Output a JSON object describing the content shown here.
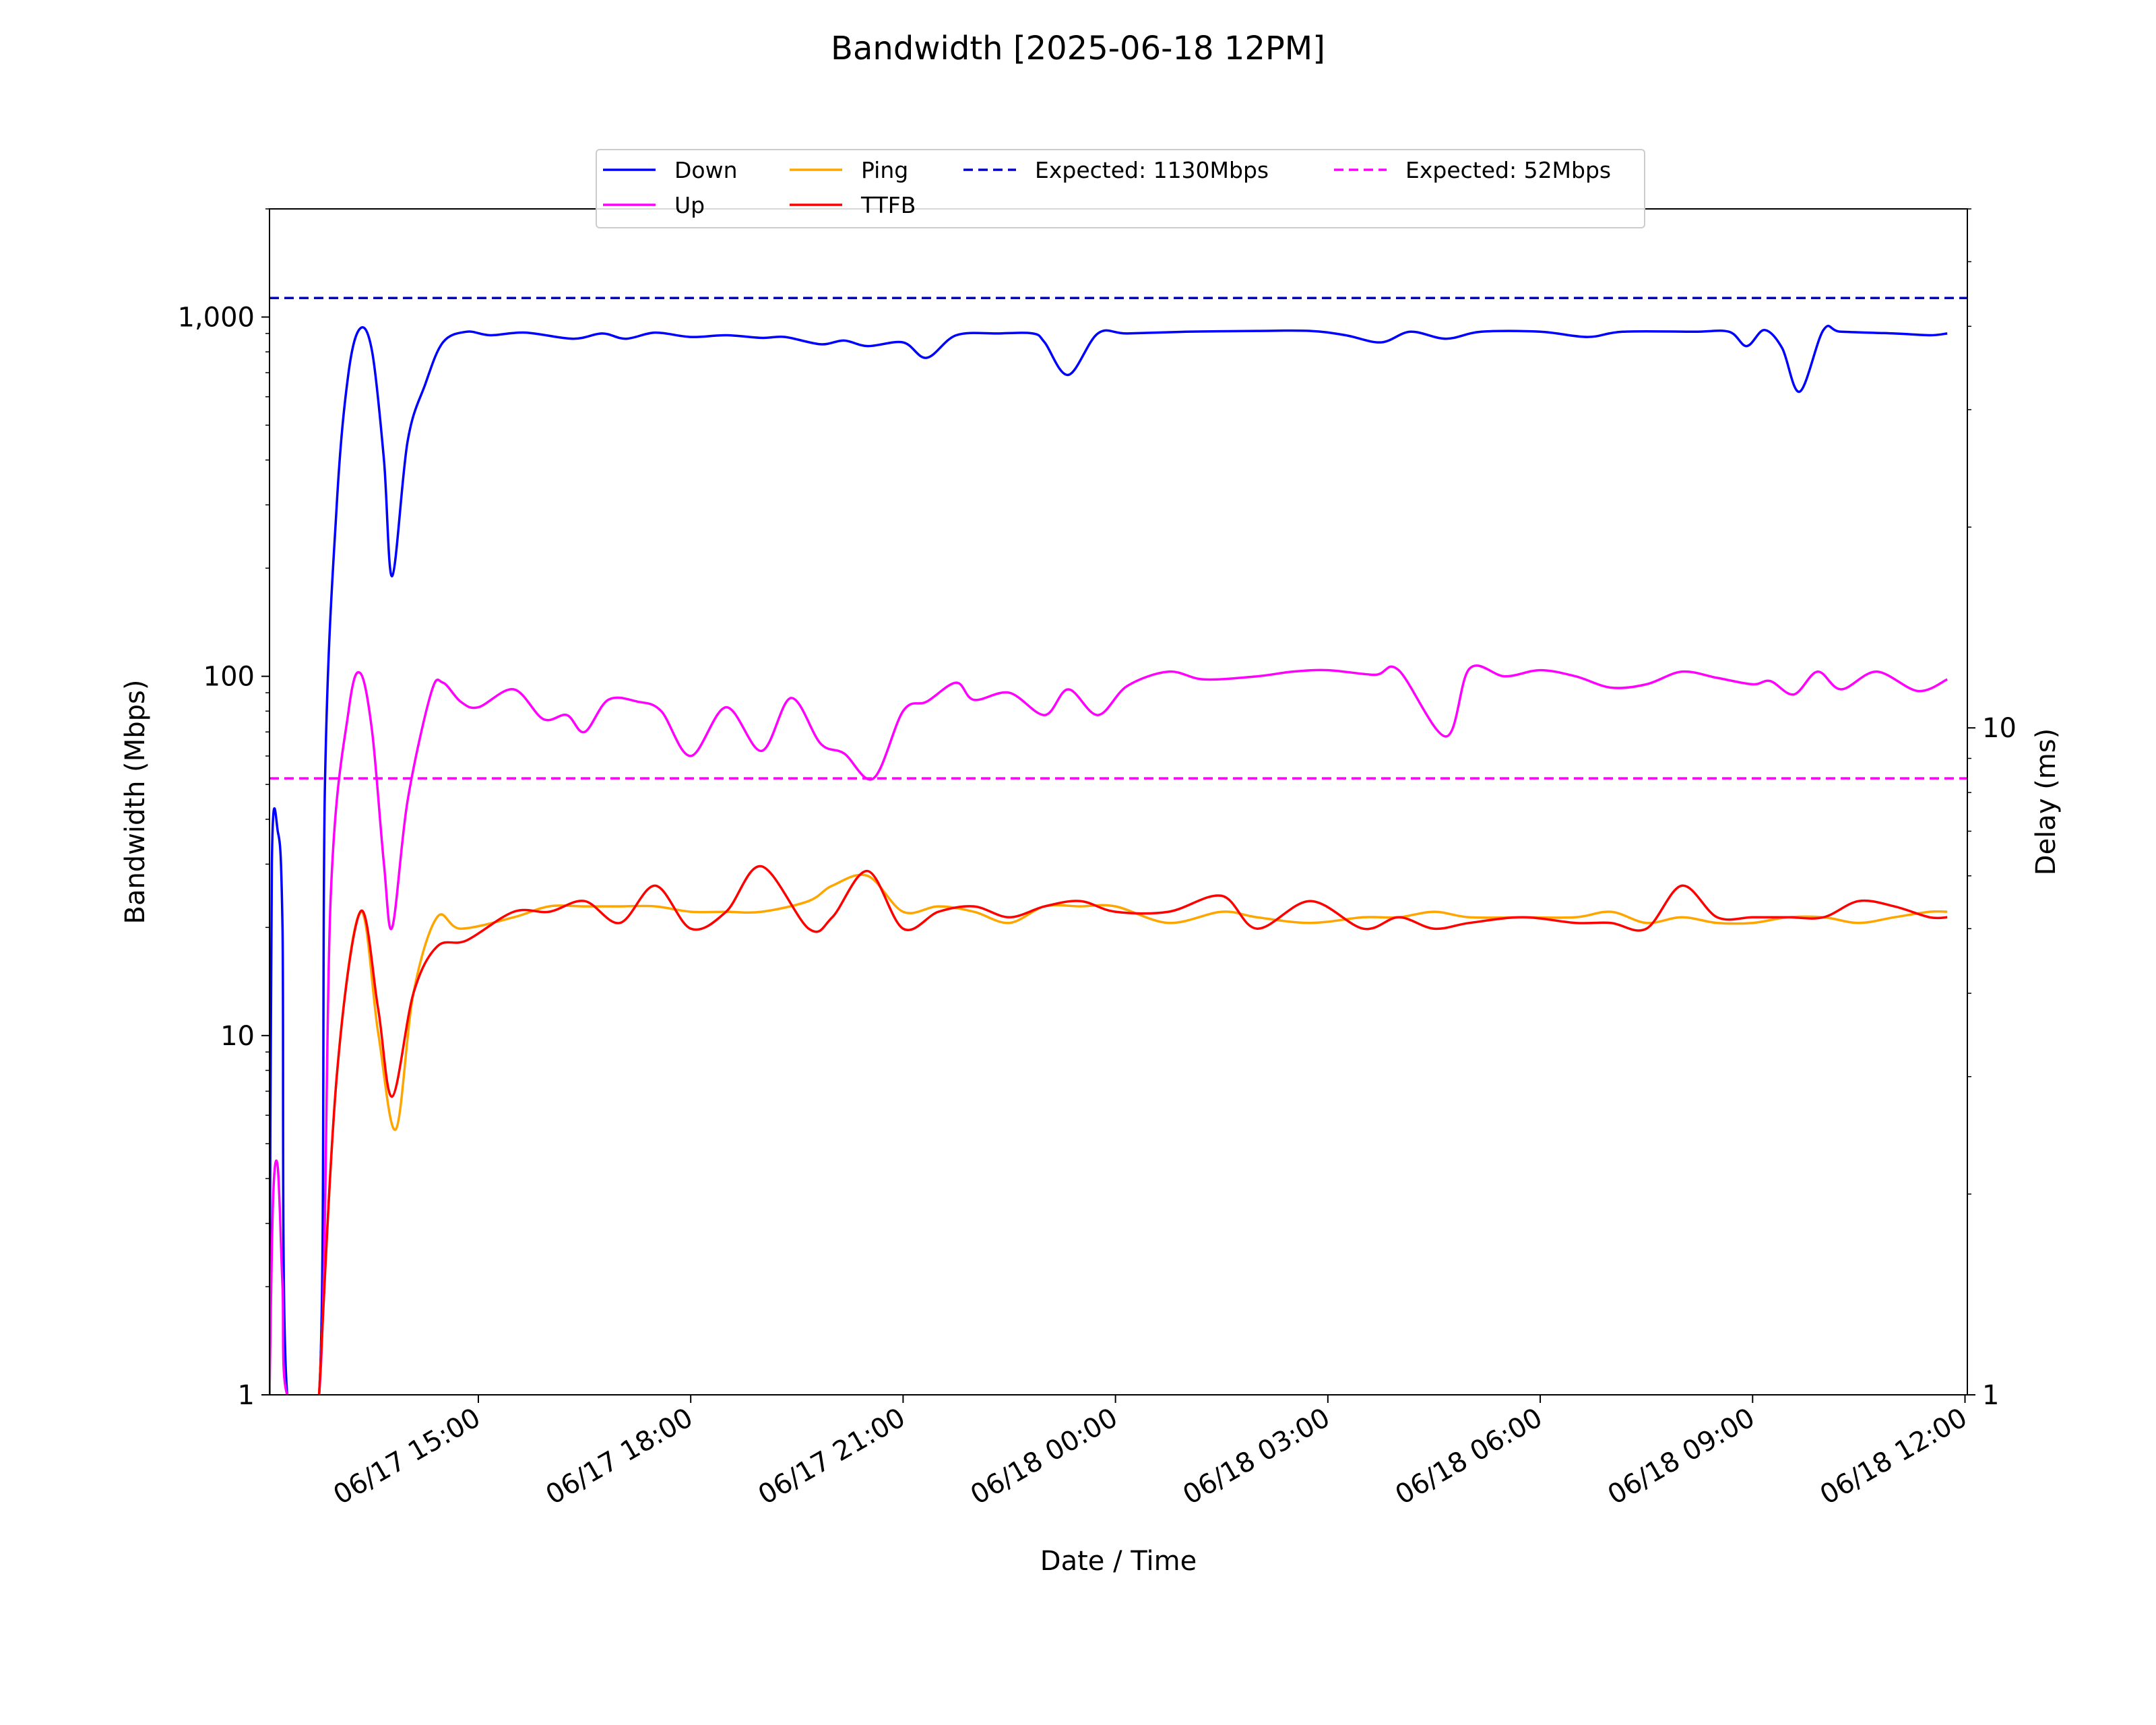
{
  "chart_data": {
    "type": "line",
    "title": "Bandwidth [2025-06-18 12PM]",
    "xlabel": "Date / Time",
    "ylabel": "Bandwidth (Mbps)",
    "y2label": "Delay (ms)",
    "yscale": "log",
    "y2scale": "log",
    "ylim": [
      1,
      2000
    ],
    "y2lim": [
      1,
      60
    ],
    "xlim": [
      "2025-06-17 12:03",
      "2025-06-18 12:02"
    ],
    "grid": false,
    "legend_position": "top-center",
    "y_ticks": [
      {
        "value": 1,
        "label": "1"
      },
      {
        "value": 10,
        "label": "10"
      },
      {
        "value": 100,
        "label": "100"
      },
      {
        "value": 1000,
        "label": "1,000"
      }
    ],
    "y2_ticks": [
      {
        "value": 1,
        "label": "1"
      },
      {
        "value": 10,
        "label": "10"
      }
    ],
    "x_ticks": [
      {
        "value": "2025-06-17 15:00",
        "label": "06/17 15:00"
      },
      {
        "value": "2025-06-17 18:00",
        "label": "06/17 18:00"
      },
      {
        "value": "2025-06-17 21:00",
        "label": "06/17 21:00"
      },
      {
        "value": "2025-06-18 00:00",
        "label": "06/18 00:00"
      },
      {
        "value": "2025-06-18 03:00",
        "label": "06/18 03:00"
      },
      {
        "value": "2025-06-18 06:00",
        "label": "06/18 06:00"
      },
      {
        "value": "2025-06-18 09:00",
        "label": "06/18 09:00"
      },
      {
        "value": "2025-06-18 12:00",
        "label": "06/18 12:00"
      }
    ],
    "legend": [
      {
        "name": "Down",
        "color": "#0000ff",
        "dashed": false
      },
      {
        "name": "Up",
        "color": "#ff00ff",
        "dashed": false
      },
      {
        "name": "Ping",
        "color": "#ffa500",
        "dashed": false
      },
      {
        "name": "TTFB",
        "color": "#ff0000",
        "dashed": false
      },
      {
        "name": "Expected: 1130Mbps",
        "color": "#0000cc",
        "dashed": true
      },
      {
        "name": "Expected: 52Mbps",
        "color": "#ff00ff",
        "dashed": true
      }
    ],
    "reference_lines": [
      {
        "name": "Expected: 1130Mbps",
        "axis": "left",
        "value": 1130,
        "color": "#0000cc"
      },
      {
        "name": "Expected: 52Mbps",
        "axis": "left",
        "value": 52,
        "color": "#ff00ff"
      }
    ],
    "series": [
      {
        "name": "Down",
        "axis": "left",
        "color": "#0000ff",
        "points": [
          [
            "2025-06-17 12:03",
            1
          ],
          [
            "2025-06-17 12:05",
            30
          ],
          [
            "2025-06-17 12:10",
            37
          ],
          [
            "2025-06-17 12:14",
            20
          ],
          [
            "2025-06-17 12:18",
            1
          ],
          [
            "2025-06-17 12:45",
            1
          ],
          [
            "2025-06-17 12:50",
            50
          ],
          [
            "2025-06-17 13:00",
            300
          ],
          [
            "2025-06-17 13:10",
            700
          ],
          [
            "2025-06-17 13:20",
            930
          ],
          [
            "2025-06-17 13:30",
            800
          ],
          [
            "2025-06-17 13:40",
            400
          ],
          [
            "2025-06-17 13:47",
            190
          ],
          [
            "2025-06-17 14:00",
            450
          ],
          [
            "2025-06-17 14:15",
            650
          ],
          [
            "2025-06-17 14:30",
            850
          ],
          [
            "2025-06-17 14:50",
            910
          ],
          [
            "2025-06-17 15:10",
            890
          ],
          [
            "2025-06-17 15:40",
            905
          ],
          [
            "2025-06-17 16:20",
            870
          ],
          [
            "2025-06-17 16:45",
            900
          ],
          [
            "2025-06-17 17:05",
            870
          ],
          [
            "2025-06-17 17:30",
            905
          ],
          [
            "2025-06-17 18:00",
            880
          ],
          [
            "2025-06-17 18:30",
            890
          ],
          [
            "2025-06-17 19:00",
            875
          ],
          [
            "2025-06-17 19:20",
            880
          ],
          [
            "2025-06-17 19:50",
            840
          ],
          [
            "2025-06-17 20:10",
            860
          ],
          [
            "2025-06-17 20:30",
            830
          ],
          [
            "2025-06-17 21:00",
            850
          ],
          [
            "2025-06-17 21:20",
            770
          ],
          [
            "2025-06-17 21:45",
            890
          ],
          [
            "2025-06-17 22:20",
            900
          ],
          [
            "2025-06-17 22:50",
            900
          ],
          [
            "2025-06-17 23:00",
            850
          ],
          [
            "2025-06-17 23:20",
            690
          ],
          [
            "2025-06-17 23:45",
            900
          ],
          [
            "2025-06-18 00:10",
            900
          ],
          [
            "2025-06-18 01:00",
            910
          ],
          [
            "2025-06-18 02:00",
            915
          ],
          [
            "2025-06-18 02:45",
            915
          ],
          [
            "2025-06-18 03:15",
            890
          ],
          [
            "2025-06-18 03:45",
            850
          ],
          [
            "2025-06-18 04:10",
            910
          ],
          [
            "2025-06-18 04:40",
            870
          ],
          [
            "2025-06-18 05:10",
            910
          ],
          [
            "2025-06-18 06:00",
            910
          ],
          [
            "2025-06-18 06:40",
            880
          ],
          [
            "2025-06-18 07:10",
            910
          ],
          [
            "2025-06-18 08:10",
            910
          ],
          [
            "2025-06-18 08:40",
            910
          ],
          [
            "2025-06-18 08:55",
            830
          ],
          [
            "2025-06-18 09:10",
            920
          ],
          [
            "2025-06-18 09:25",
            820
          ],
          [
            "2025-06-18 09:40",
            620
          ],
          [
            "2025-06-18 10:00",
            920
          ],
          [
            "2025-06-18 10:15",
            910
          ],
          [
            "2025-06-18 11:00",
            900
          ],
          [
            "2025-06-18 11:30",
            890
          ],
          [
            "2025-06-18 11:45",
            900
          ]
        ]
      },
      {
        "name": "Up",
        "axis": "left",
        "color": "#ff00ff",
        "points": [
          [
            "2025-06-17 12:03",
            1
          ],
          [
            "2025-06-17 12:06",
            3.5
          ],
          [
            "2025-06-17 12:10",
            4.3
          ],
          [
            "2025-06-17 12:14",
            2
          ],
          [
            "2025-06-17 12:18",
            1
          ],
          [
            "2025-06-17 12:45",
            1
          ],
          [
            "2025-06-17 12:55",
            25
          ],
          [
            "2025-06-17 13:10",
            80
          ],
          [
            "2025-06-17 13:20",
            102
          ],
          [
            "2025-06-17 13:30",
            70
          ],
          [
            "2025-06-17 13:40",
            30
          ],
          [
            "2025-06-17 13:47",
            20
          ],
          [
            "2025-06-17 14:00",
            45
          ],
          [
            "2025-06-17 14:20",
            90
          ],
          [
            "2025-06-17 14:30",
            96
          ],
          [
            "2025-06-17 14:45",
            85
          ],
          [
            "2025-06-17 15:00",
            82
          ],
          [
            "2025-06-17 15:30",
            92
          ],
          [
            "2025-06-17 15:55",
            76
          ],
          [
            "2025-06-17 16:15",
            78
          ],
          [
            "2025-06-17 16:30",
            70
          ],
          [
            "2025-06-17 16:50",
            86
          ],
          [
            "2025-06-17 17:15",
            85
          ],
          [
            "2025-06-17 17:35",
            80
          ],
          [
            "2025-06-17 18:00",
            60
          ],
          [
            "2025-06-17 18:30",
            82
          ],
          [
            "2025-06-17 19:00",
            62
          ],
          [
            "2025-06-17 19:25",
            87
          ],
          [
            "2025-06-17 19:50",
            65
          ],
          [
            "2025-06-17 20:10",
            61
          ],
          [
            "2025-06-17 20:35",
            52
          ],
          [
            "2025-06-17 21:00",
            80
          ],
          [
            "2025-06-17 21:20",
            85
          ],
          [
            "2025-06-17 21:45",
            96
          ],
          [
            "2025-06-17 22:00",
            86
          ],
          [
            "2025-06-17 22:30",
            90
          ],
          [
            "2025-06-17 23:00",
            78
          ],
          [
            "2025-06-17 23:20",
            92
          ],
          [
            "2025-06-17 23:45",
            78
          ],
          [
            "2025-06-18 00:10",
            94
          ],
          [
            "2025-06-18 00:45",
            103
          ],
          [
            "2025-06-18 01:15",
            98
          ],
          [
            "2025-06-18 02:00",
            100
          ],
          [
            "2025-06-18 02:30",
            103
          ],
          [
            "2025-06-18 03:00",
            104
          ],
          [
            "2025-06-18 03:40",
            101
          ],
          [
            "2025-06-18 04:00",
            104
          ],
          [
            "2025-06-18 04:40",
            68
          ],
          [
            "2025-06-18 05:00",
            105
          ],
          [
            "2025-06-18 05:30",
            100
          ],
          [
            "2025-06-18 06:00",
            104
          ],
          [
            "2025-06-18 06:30",
            100
          ],
          [
            "2025-06-18 07:00",
            93
          ],
          [
            "2025-06-18 07:30",
            95
          ],
          [
            "2025-06-18 08:00",
            103
          ],
          [
            "2025-06-18 08:30",
            99
          ],
          [
            "2025-06-18 09:00",
            95
          ],
          [
            "2025-06-18 09:15",
            97
          ],
          [
            "2025-06-18 09:35",
            89
          ],
          [
            "2025-06-18 09:55",
            103
          ],
          [
            "2025-06-18 10:15",
            92
          ],
          [
            "2025-06-18 10:45",
            103
          ],
          [
            "2025-06-18 11:20",
            91
          ],
          [
            "2025-06-18 11:45",
            98
          ]
        ]
      },
      {
        "name": "Ping",
        "axis": "right",
        "color": "#ffa500",
        "points": [
          [
            "2025-06-17 12:45",
            1
          ],
          [
            "2025-06-17 13:00",
            3
          ],
          [
            "2025-06-17 13:20",
            5.3
          ],
          [
            "2025-06-17 13:35",
            3.5
          ],
          [
            "2025-06-17 13:50",
            2.5
          ],
          [
            "2025-06-17 14:05",
            4
          ],
          [
            "2025-06-17 14:25",
            5.2
          ],
          [
            "2025-06-17 14:45",
            5.0
          ],
          [
            "2025-06-17 15:30",
            5.2
          ],
          [
            "2025-06-17 16:00",
            5.4
          ],
          [
            "2025-06-17 16:30",
            5.4
          ],
          [
            "2025-06-17 17:00",
            5.4
          ],
          [
            "2025-06-17 17:30",
            5.4
          ],
          [
            "2025-06-17 18:00",
            5.3
          ],
          [
            "2025-06-17 18:30",
            5.3
          ],
          [
            "2025-06-17 19:00",
            5.3
          ],
          [
            "2025-06-17 19:40",
            5.5
          ],
          [
            "2025-06-17 20:00",
            5.8
          ],
          [
            "2025-06-17 20:30",
            6.0
          ],
          [
            "2025-06-17 21:00",
            5.3
          ],
          [
            "2025-06-17 21:30",
            5.4
          ],
          [
            "2025-06-17 22:00",
            5.3
          ],
          [
            "2025-06-17 22:30",
            5.1
          ],
          [
            "2025-06-17 23:00",
            5.4
          ],
          [
            "2025-06-17 23:30",
            5.4
          ],
          [
            "2025-06-18 00:00",
            5.4
          ],
          [
            "2025-06-18 00:45",
            5.1
          ],
          [
            "2025-06-18 01:30",
            5.3
          ],
          [
            "2025-06-18 02:00",
            5.2
          ],
          [
            "2025-06-18 02:45",
            5.1
          ],
          [
            "2025-06-18 03:30",
            5.2
          ],
          [
            "2025-06-18 04:00",
            5.2
          ],
          [
            "2025-06-18 04:30",
            5.3
          ],
          [
            "2025-06-18 05:00",
            5.2
          ],
          [
            "2025-06-18 05:45",
            5.2
          ],
          [
            "2025-06-18 06:30",
            5.2
          ],
          [
            "2025-06-18 07:00",
            5.3
          ],
          [
            "2025-06-18 07:30",
            5.1
          ],
          [
            "2025-06-18 08:00",
            5.2
          ],
          [
            "2025-06-18 08:30",
            5.1
          ],
          [
            "2025-06-18 09:00",
            5.1
          ],
          [
            "2025-06-18 09:30",
            5.2
          ],
          [
            "2025-06-18 10:00",
            5.2
          ],
          [
            "2025-06-18 10:30",
            5.1
          ],
          [
            "2025-06-18 11:00",
            5.2
          ],
          [
            "2025-06-18 11:30",
            5.3
          ],
          [
            "2025-06-18 11:45",
            5.3
          ]
        ]
      },
      {
        "name": "TTFB",
        "axis": "right",
        "color": "#ff0000",
        "points": [
          [
            "2025-06-17 12:45",
            1
          ],
          [
            "2025-06-17 13:00",
            3
          ],
          [
            "2025-06-17 13:20",
            5.3
          ],
          [
            "2025-06-17 13:35",
            3.8
          ],
          [
            "2025-06-17 13:47",
            2.8
          ],
          [
            "2025-06-17 14:05",
            4
          ],
          [
            "2025-06-17 14:25",
            4.7
          ],
          [
            "2025-06-17 14:50",
            4.8
          ],
          [
            "2025-06-17 15:30",
            5.3
          ],
          [
            "2025-06-17 16:00",
            5.3
          ],
          [
            "2025-06-17 16:30",
            5.5
          ],
          [
            "2025-06-17 17:00",
            5.1
          ],
          [
            "2025-06-17 17:30",
            5.8
          ],
          [
            "2025-06-17 18:00",
            5.0
          ],
          [
            "2025-06-17 18:30",
            5.3
          ],
          [
            "2025-06-17 19:00",
            6.2
          ],
          [
            "2025-06-17 19:40",
            5.0
          ],
          [
            "2025-06-17 20:00",
            5.2
          ],
          [
            "2025-06-17 20:30",
            6.1
          ],
          [
            "2025-06-17 21:00",
            5.0
          ],
          [
            "2025-06-17 21:30",
            5.3
          ],
          [
            "2025-06-17 22:00",
            5.4
          ],
          [
            "2025-06-17 22:30",
            5.2
          ],
          [
            "2025-06-17 23:00",
            5.4
          ],
          [
            "2025-06-17 23:30",
            5.5
          ],
          [
            "2025-06-18 00:00",
            5.3
          ],
          [
            "2025-06-18 00:45",
            5.3
          ],
          [
            "2025-06-18 01:30",
            5.6
          ],
          [
            "2025-06-18 02:00",
            5.0
          ],
          [
            "2025-06-18 02:45",
            5.5
          ],
          [
            "2025-06-18 03:30",
            5.0
          ],
          [
            "2025-06-18 04:00",
            5.2
          ],
          [
            "2025-06-18 04:30",
            5.0
          ],
          [
            "2025-06-18 05:00",
            5.1
          ],
          [
            "2025-06-18 05:45",
            5.2
          ],
          [
            "2025-06-18 06:30",
            5.1
          ],
          [
            "2025-06-18 07:00",
            5.1
          ],
          [
            "2025-06-18 07:30",
            5.0
          ],
          [
            "2025-06-18 08:00",
            5.8
          ],
          [
            "2025-06-18 08:30",
            5.2
          ],
          [
            "2025-06-18 09:00",
            5.2
          ],
          [
            "2025-06-18 09:30",
            5.2
          ],
          [
            "2025-06-18 10:00",
            5.2
          ],
          [
            "2025-06-18 10:30",
            5.5
          ],
          [
            "2025-06-18 11:00",
            5.4
          ],
          [
            "2025-06-18 11:30",
            5.2
          ],
          [
            "2025-06-18 11:45",
            5.2
          ]
        ]
      }
    ]
  }
}
